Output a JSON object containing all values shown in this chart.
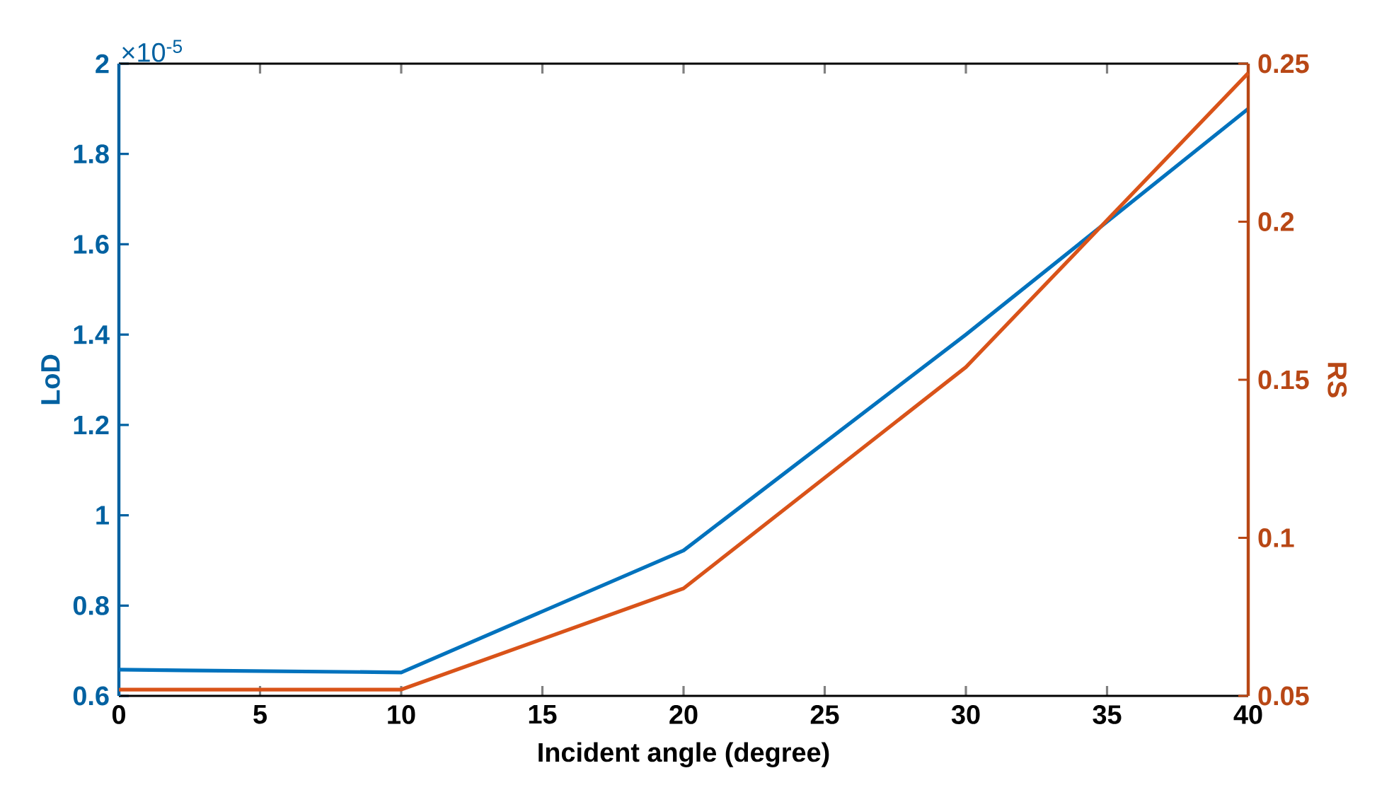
{
  "chart_data": {
    "type": "line",
    "xlabel": "Incident angle (degree)",
    "ylabel": "LoD",
    "y2label": "RS",
    "annotations": [
      "×10$^{-5}$"
    ],
    "x": [
      0,
      10,
      20,
      30,
      40
    ],
    "xlim": [
      0,
      40
    ],
    "xticks": [
      0,
      5,
      10,
      15,
      20,
      25,
      30,
      35,
      40
    ],
    "ylim": [
      0.6,
      2
    ],
    "yticks": [
      0.6,
      0.8,
      1,
      1.2,
      1.4,
      1.6,
      1.8,
      2
    ],
    "y2lim": [
      0.05,
      0.25
    ],
    "y2ticks": [
      0.05,
      0.1,
      0.15,
      0.2,
      0.25
    ],
    "grid": false,
    "series": [
      {
        "color": "#0072bd",
        "values": [
          0.658,
          0.652,
          0.922,
          1.4,
          1.9
        ]
      },
      {
        "color": "#d95319",
        "axis": "y2",
        "values": [
          0.052,
          0.052,
          0.084,
          0.154,
          0.247
        ]
      }
    ]
  }
}
